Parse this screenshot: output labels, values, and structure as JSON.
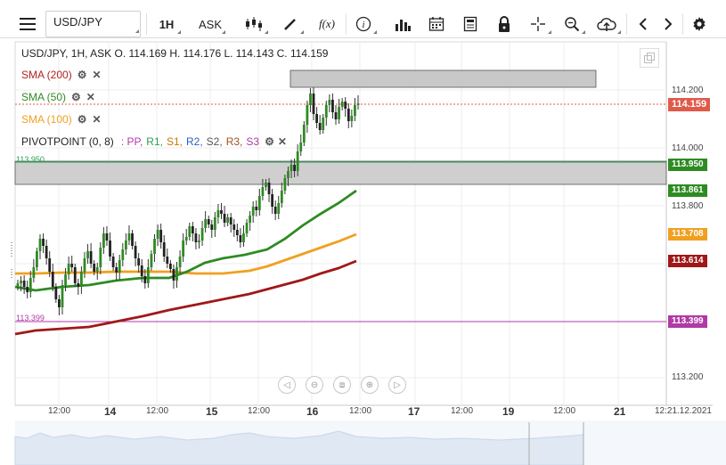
{
  "toolbar": {
    "menu_icon": "hamburger-menu-icon",
    "symbol": "USD/JPY",
    "timeframe": "1H",
    "price_side": "ASK",
    "tools": [
      "candlestick-icon",
      "draw-pencil-icon",
      "fx-indicator-icon",
      "info-icon",
      "volume-bars-icon",
      "calendar-icon",
      "order-ticket-icon",
      "lock-icon",
      "crosshair-icon",
      "zoom-icon",
      "cloud-upload-icon",
      "prev-arrow-icon",
      "next-arrow-icon",
      "gear-icon"
    ],
    "fx_label": "f(x)"
  },
  "chart": {
    "header": "USD/JPY, 1H, ASK   O. 114.169 H. 114.176 L. 114.143 C. 114.159",
    "indicators": [
      {
        "label": "SMA (200)",
        "color": "#b22222"
      },
      {
        "label": "SMA (50)",
        "color": "#2e8b22"
      },
      {
        "label": "SMA (100)",
        "color": "#f0a020"
      }
    ],
    "pivot": {
      "label": "PIVOTPOINT (0, 8)",
      "parts": [
        {
          "text": ": PP,",
          "color": "#b03aa6"
        },
        {
          "text": "R1,",
          "color": "#2aa050"
        },
        {
          "text": "S1,",
          "color": "#c77b00"
        },
        {
          "text": "R2,",
          "color": "#2a60c0"
        },
        {
          "text": "S2,",
          "color": "#555555"
        },
        {
          "text": "R3,",
          "color": "#a05020"
        },
        {
          "text": "S3",
          "color": "#b03aa6"
        }
      ]
    },
    "price_ticks": [
      "114.200",
      "114.000",
      "113.800",
      "113.200"
    ],
    "price_labels": [
      {
        "value": "114.159",
        "color": "#e05a4a"
      },
      {
        "value": "113.950",
        "color": "#2e8b22"
      },
      {
        "value": "113.861",
        "color": "#2e8b22"
      },
      {
        "value": "113.708",
        "color": "#f0a020"
      },
      {
        "value": "113.614",
        "color": "#a01818"
      },
      {
        "value": "113.399",
        "color": "#b03aa6"
      }
    ],
    "line_labels": {
      "r1": "113.950",
      "pp": "113.399"
    },
    "x_ticks": [
      {
        "label": "12:00",
        "bold": false
      },
      {
        "label": "14",
        "bold": true
      },
      {
        "label": "12:00",
        "bold": false
      },
      {
        "label": "15",
        "bold": true
      },
      {
        "label": "12:00",
        "bold": false
      },
      {
        "label": "16",
        "bold": true
      },
      {
        "label": "12:00",
        "bold": false
      },
      {
        "label": "17",
        "bold": true
      },
      {
        "label": "12:00",
        "bold": false
      },
      {
        "label": "19",
        "bold": true
      },
      {
        "label": "12:00",
        "bold": false
      },
      {
        "label": "21",
        "bold": true
      },
      {
        "label": "12:21.12.2021",
        "bold": false
      }
    ],
    "nav_controls": [
      "prev-icon",
      "zoom-out-icon",
      "reset-icon",
      "zoom-in-icon",
      "next-icon"
    ]
  }
}
